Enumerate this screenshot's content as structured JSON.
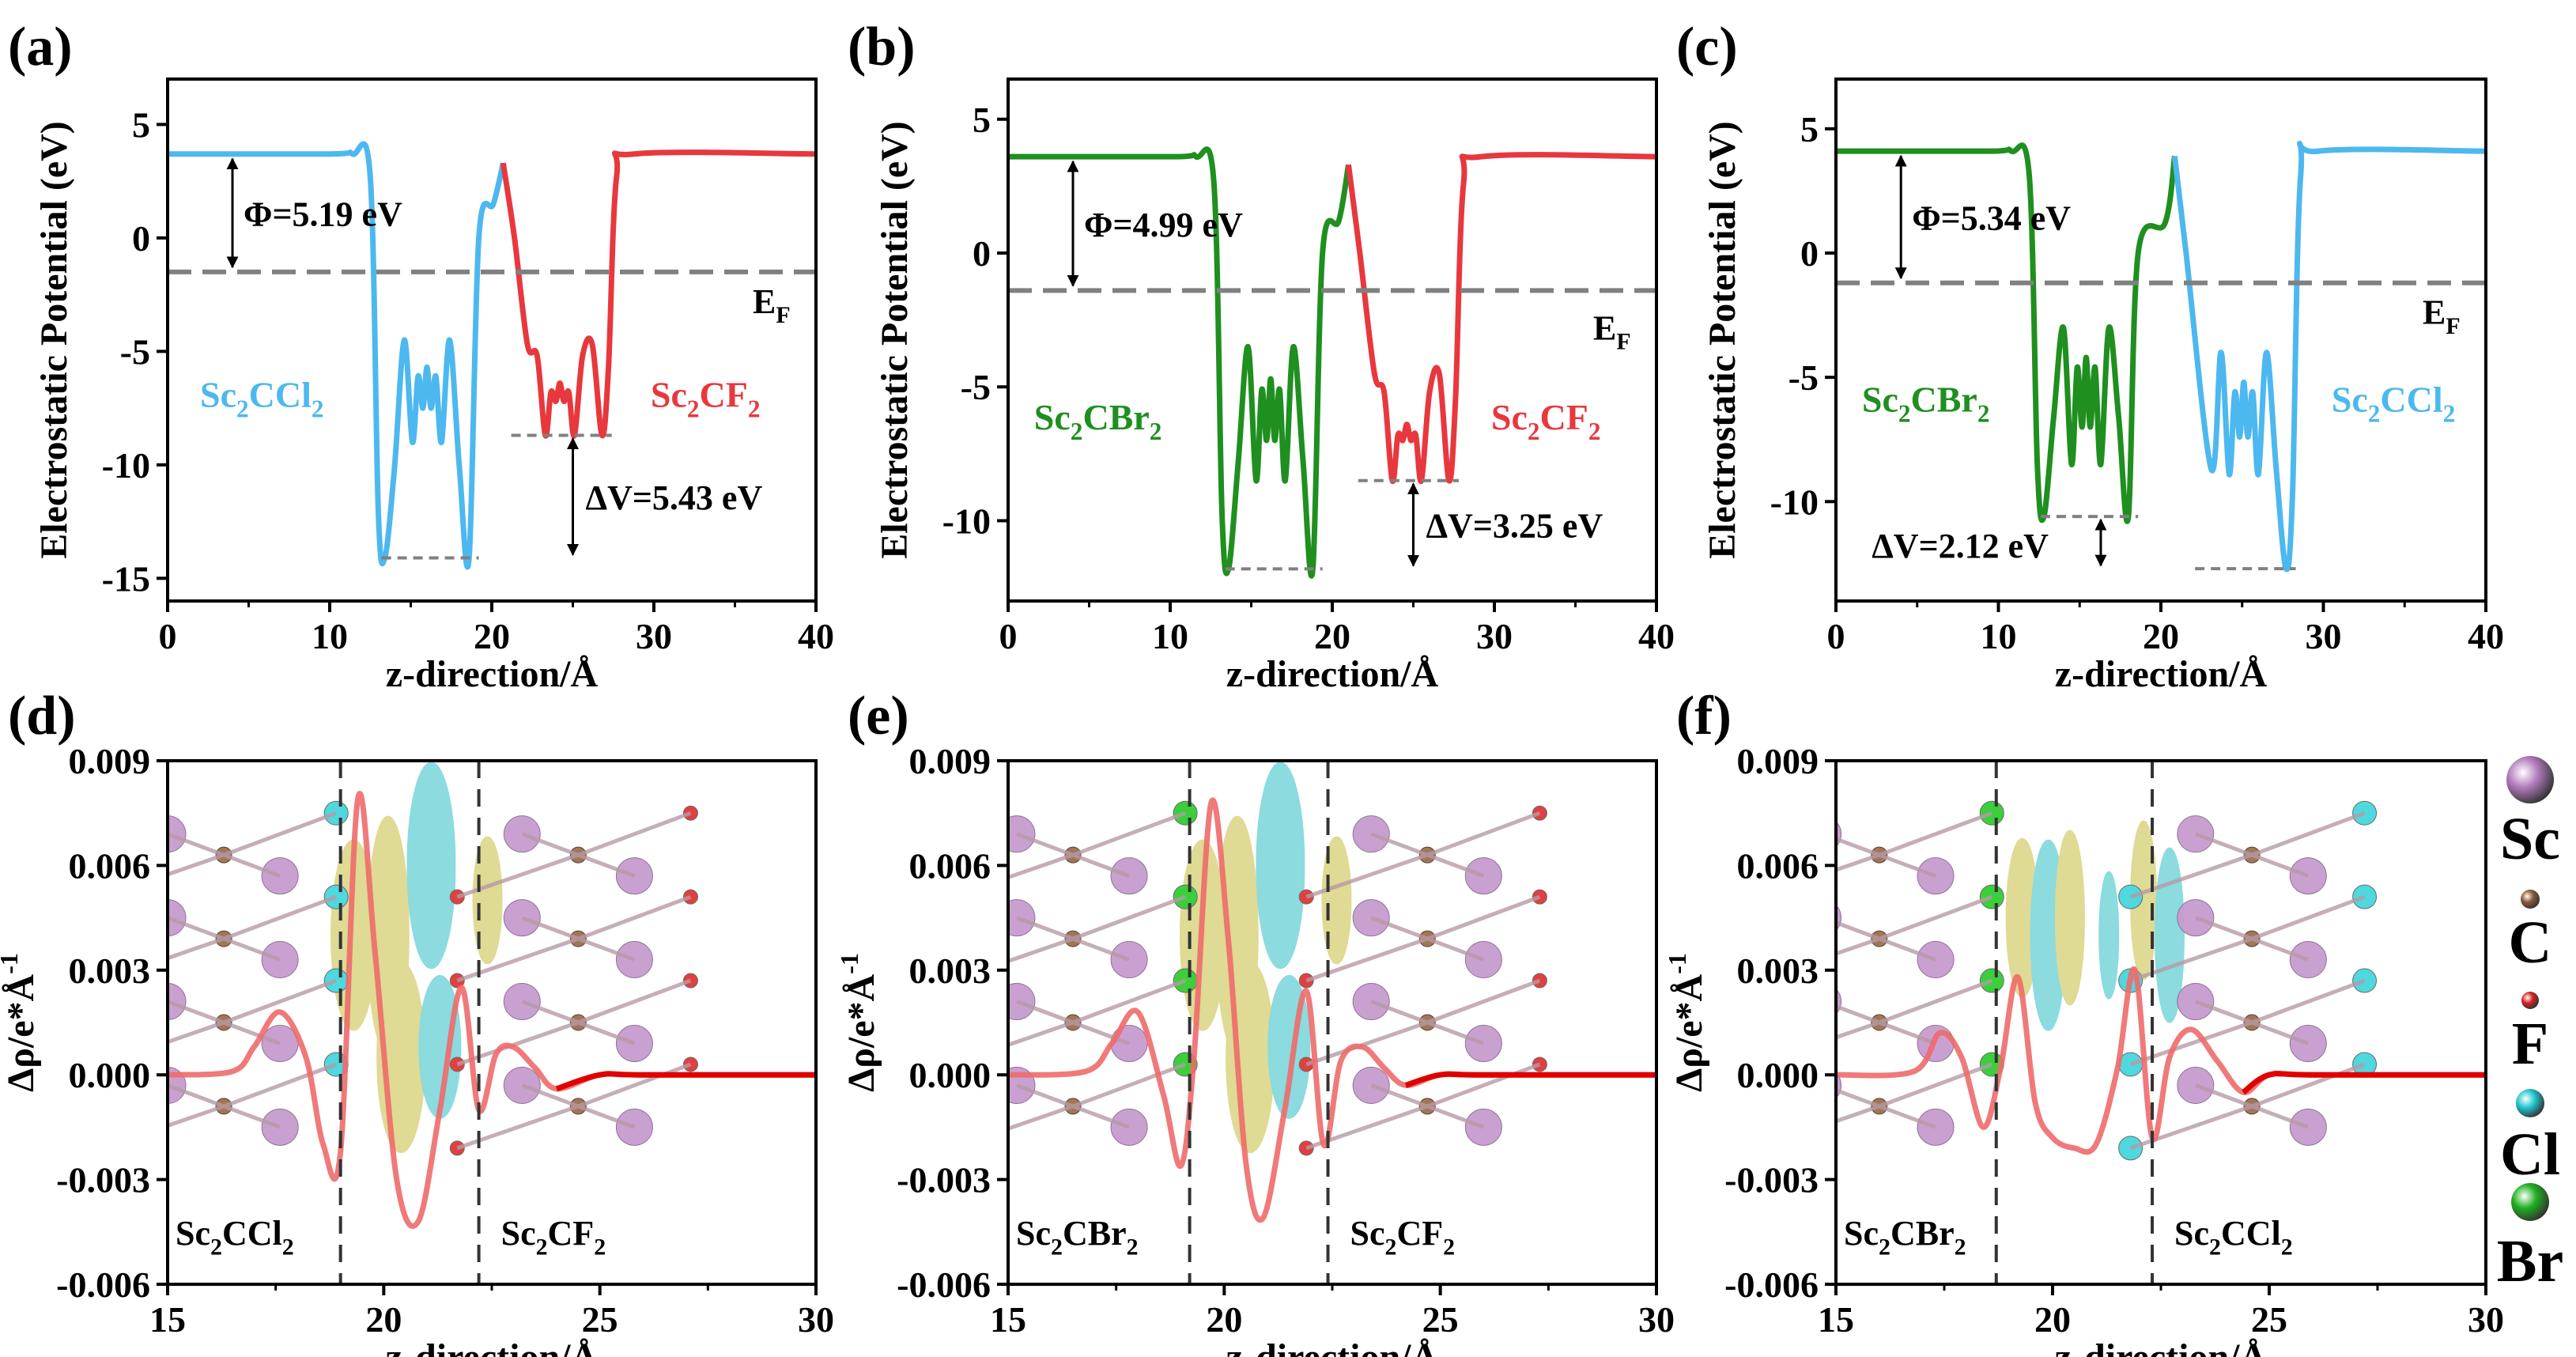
{
  "colors": {
    "sc2ccl2": "#4db8ef",
    "sc2cf2": "#e8383d",
    "sc2cbr2": "#1f8f1f",
    "fermi": "#808080",
    "axis": "#000000",
    "diff_line": "#ee6a6a",
    "diff_tail": "#e00000",
    "iso_yellow": "#d8d27a",
    "iso_cyan": "#6fd3d8",
    "atom_sc": "#c79ccf",
    "atom_c": "#a07657",
    "atom_f": "#e04040",
    "atom_cl": "#4fd8de",
    "atom_br": "#3ccf3c"
  },
  "legend": {
    "items": [
      {
        "label": "Sc",
        "color": "#b27bbd",
        "icon": "sphere-sc"
      },
      {
        "label": "C",
        "color": "#8c5a3a",
        "icon": "sphere-c"
      },
      {
        "label": "F",
        "color": "#d82020",
        "icon": "sphere-f"
      },
      {
        "label": "Cl",
        "color": "#20c8d0",
        "icon": "sphere-cl"
      },
      {
        "label": "Br",
        "color": "#20b020",
        "icon": "sphere-br"
      }
    ]
  },
  "chart_data": [
    {
      "panel": "(a)",
      "type": "line",
      "xlabel": "z-direction/Å",
      "ylabel": "Electrostatic Potential (eV)",
      "xlim": [
        0,
        40
      ],
      "ylim": [
        -16,
        7
      ],
      "xticks": [
        0,
        10,
        20,
        30,
        40
      ],
      "yticks": [
        5,
        0,
        -5,
        -10,
        -15
      ],
      "fermi_level": -1.5,
      "vacuum_level": 3.7,
      "left_layer": {
        "name": "Sc2CCl2",
        "sub": "Sc",
        "sub2": "2",
        "mid": "CCl",
        "mid2": "2",
        "color": "#4db8ef",
        "z_center": 16.0,
        "deep_min": -14.1,
        "wiggle_top": -4.5,
        "wiggle_bottom": -9.0
      },
      "right_layer": {
        "name": "Sc2CF2",
        "color": "#e8383d",
        "z_center": 24.2,
        "deep_min": -8.7,
        "wiggle_top": -5.2,
        "wiggle_bottom": -8.7
      },
      "peak_between": 3.3,
      "annotations": {
        "phi": "Φ=5.19 eV",
        "dv": "ΔV=5.43 eV",
        "ef": "E",
        "ef_sub": "F"
      },
      "labels": {
        "left": [
          "Sc",
          "2",
          "CCl",
          "2"
        ],
        "right": [
          "Sc",
          "2",
          "CF",
          "2"
        ]
      }
    },
    {
      "panel": "(b)",
      "type": "line",
      "xlabel": "z-direction/Å",
      "ylabel": "Electrostatic Potential (eV)",
      "xlim": [
        0,
        40
      ],
      "ylim": [
        -13,
        6.5
      ],
      "xticks": [
        0,
        10,
        20,
        30,
        40
      ],
      "yticks": [
        5,
        0,
        -5,
        -10
      ],
      "fermi_level": -1.4,
      "vacuum_level": 3.6,
      "left_layer": {
        "name": "Sc2CBr2",
        "color": "#1f8f1f",
        "z_center": 16.2,
        "deep_min": -11.8,
        "wiggle_top": -3.5,
        "wiggle_bottom": -8.5
      },
      "right_layer": {
        "name": "Sc2CF2",
        "color": "#e8383d",
        "z_center": 24.6,
        "deep_min": -8.5,
        "wiggle_top": -5.2,
        "wiggle_bottom": -8.5
      },
      "peak_between": 3.3,
      "annotations": {
        "phi": "Φ=4.99 eV",
        "dv": "ΔV=3.25 eV",
        "ef": "E",
        "ef_sub": "F"
      },
      "labels": {
        "left": [
          "Sc",
          "2",
          "CBr",
          "2"
        ],
        "right": [
          "Sc",
          "2",
          "CF",
          "2"
        ]
      }
    },
    {
      "panel": "(c)",
      "type": "line",
      "xlabel": "z-direction/Å",
      "ylabel": "Electrostatic Potential (eV)",
      "xlim": [
        0,
        40
      ],
      "ylim": [
        -14,
        7
      ],
      "xticks": [
        0,
        10,
        20,
        30,
        40
      ],
      "yticks": [
        5,
        0,
        -5,
        -10
      ],
      "fermi_level": -1.2,
      "vacuum_level": 4.1,
      "left_layer": {
        "name": "Sc2CBr2",
        "color": "#1f8f1f",
        "z_center": 15.4,
        "deep_min": -10.6,
        "wiggle_top": -3.0,
        "wiggle_bottom": -8.5
      },
      "right_layer": {
        "name": "Sc2CCl2",
        "color": "#4db8ef",
        "z_center": 25.1,
        "deep_min": -12.7,
        "wiggle_top": -4.0,
        "wiggle_bottom": -8.9
      },
      "peak_between": 3.9,
      "annotations": {
        "phi": "Φ=5.34 eV",
        "dv": "ΔV=2.12 eV",
        "ef": "E",
        "ef_sub": "F"
      },
      "labels": {
        "left": [
          "Sc",
          "2",
          "CBr",
          "2"
        ],
        "right": [
          "Sc",
          "2",
          "CCl",
          "2"
        ]
      }
    },
    {
      "panel": "(d)",
      "type": "line",
      "xlabel": "z-direction/Å",
      "ylabel": "Δρ/e*Å",
      "ylabel_sup": "-1",
      "xlim": [
        15,
        30
      ],
      "ylim": [
        -0.006,
        0.009
      ],
      "xticks": [
        15,
        20,
        25,
        30
      ],
      "yticks": [
        "0.009",
        "0.006",
        "0.003",
        "0.000",
        "-0.003",
        "-0.006"
      ],
      "ytick_values": [
        0.009,
        0.006,
        0.003,
        0.0,
        -0.003,
        -0.006
      ],
      "dividers": [
        19.0,
        22.2
      ],
      "x": [
        15,
        16.5,
        17.0,
        17.6,
        18.2,
        18.6,
        19.0,
        19.4,
        19.8,
        20.3,
        20.8,
        21.3,
        21.8,
        22.2,
        22.6,
        23.0,
        23.5,
        24.0,
        25,
        26,
        30
      ],
      "y": [
        0.0,
        0.0001,
        0.0008,
        0.0018,
        0.0005,
        -0.002,
        -0.0022,
        0.0079,
        0.0035,
        -0.003,
        -0.0042,
        -0.001,
        0.0025,
        -0.001,
        0.0006,
        0.0008,
        0.0002,
        -0.0004,
        0.0,
        0.0,
        0.0
      ],
      "labels": {
        "left": [
          "Sc",
          "2",
          "CCl",
          "2"
        ],
        "right": [
          "Sc",
          "2",
          "CF",
          "2"
        ]
      },
      "left_halogen": "cl",
      "right_halogen": "f"
    },
    {
      "panel": "(e)",
      "type": "line",
      "xlabel": "z-direction/Å",
      "ylabel": "Δρ/e*Å",
      "ylabel_sup": "-1",
      "xlim": [
        15,
        30
      ],
      "ylim": [
        -0.006,
        0.009
      ],
      "xticks": [
        15,
        20,
        25,
        30
      ],
      "yticks": [
        "0.009",
        "0.006",
        "0.003",
        "0.000",
        "-0.003",
        "-0.006"
      ],
      "ytick_values": [
        0.009,
        0.006,
        0.003,
        0.0,
        -0.003,
        -0.006
      ],
      "dividers": [
        19.2,
        22.4
      ],
      "x": [
        15,
        16.8,
        17.4,
        18.0,
        18.6,
        19.0,
        19.3,
        19.7,
        20.1,
        20.5,
        20.9,
        21.4,
        21.9,
        22.3,
        22.7,
        23.2,
        23.7,
        24.2,
        25,
        26,
        30
      ],
      "y": [
        0.0,
        0.0001,
        0.0009,
        0.0018,
        -0.0006,
        -0.0026,
        0.0005,
        0.0078,
        0.0038,
        -0.0025,
        -0.0041,
        -0.001,
        0.0024,
        -0.002,
        0.0004,
        0.0008,
        0.0002,
        -0.0003,
        0.0,
        0.0,
        0.0
      ],
      "labels": {
        "left": [
          "Sc",
          "2",
          "CBr",
          "2"
        ],
        "right": [
          "Sc",
          "2",
          "CF",
          "2"
        ]
      },
      "left_halogen": "br",
      "right_halogen": "f"
    },
    {
      "panel": "(f)",
      "type": "line",
      "xlabel": "z-direction/Å",
      "ylabel": "Δρ/e*Å",
      "ylabel_sup": "-1",
      "xlim": [
        15,
        30
      ],
      "ylim": [
        -0.006,
        0.009
      ],
      "xticks": [
        15,
        20,
        25,
        30
      ],
      "yticks": [
        "0.009",
        "0.006",
        "0.003",
        "0.000",
        "-0.003",
        "-0.006"
      ],
      "ytick_values": [
        0.009,
        0.006,
        0.003,
        0.0,
        -0.003,
        -0.006
      ],
      "dividers": [
        18.7,
        22.3
      ],
      "x": [
        15,
        16.8,
        17.4,
        17.9,
        18.4,
        18.8,
        19.2,
        19.6,
        20.0,
        20.5,
        21.0,
        21.5,
        21.9,
        22.3,
        22.7,
        23.2,
        23.8,
        24.4,
        25,
        26,
        30
      ],
      "y": [
        0.0,
        0.0001,
        0.0012,
        0.0005,
        -0.0015,
        0.0002,
        0.0028,
        -0.0008,
        -0.0018,
        -0.0021,
        -0.002,
        0.0002,
        0.003,
        -0.0018,
        0.0005,
        0.0013,
        0.0004,
        -0.0005,
        0.0,
        0.0,
        0.0
      ],
      "labels": {
        "left": [
          "Sc",
          "2",
          "CBr",
          "2"
        ],
        "right": [
          "Sc",
          "2",
          "CCl",
          "2"
        ]
      },
      "left_halogen": "br",
      "right_halogen": "cl"
    }
  ]
}
